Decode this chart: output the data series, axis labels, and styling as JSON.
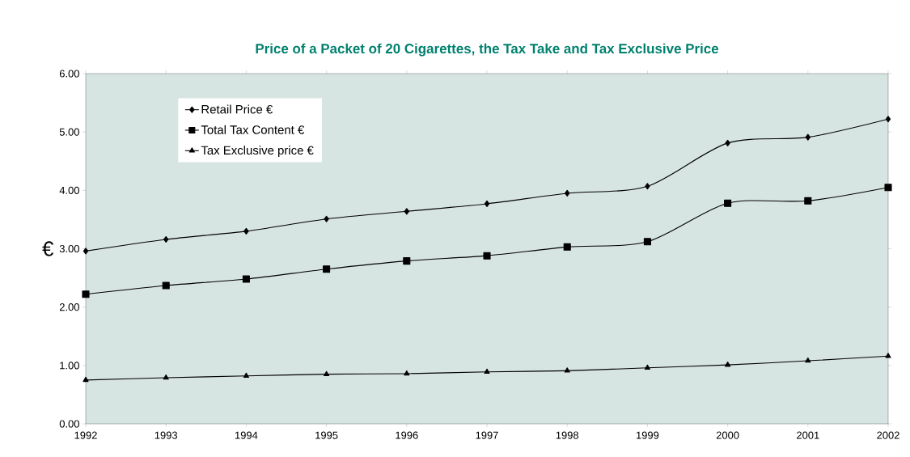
{
  "chart_data": {
    "type": "line",
    "title": "Price of a Packet of 20 Cigarettes, the Tax Take and Tax Exclusive Price",
    "ylabel": "€",
    "categories": [
      "1992",
      "1993",
      "1994",
      "1995",
      "1996",
      "1997",
      "1998",
      "1999",
      "2000",
      "2001",
      "2002"
    ],
    "series": [
      {
        "name": "Retail Price €",
        "color": "#000000",
        "marker": "diamond",
        "values": [
          2.96,
          3.16,
          3.3,
          3.51,
          3.64,
          3.77,
          3.95,
          4.07,
          4.81,
          4.91,
          5.22
        ]
      },
      {
        "name": "Total Tax Content €",
        "color": "#000000",
        "marker": "square",
        "values": [
          2.22,
          2.37,
          2.48,
          2.65,
          2.79,
          2.88,
          3.03,
          3.12,
          3.78,
          3.82,
          4.05
        ]
      },
      {
        "name": "Tax Exclusive price €",
        "color": "#000000",
        "marker": "triangle",
        "values": [
          0.75,
          0.79,
          0.82,
          0.85,
          0.86,
          0.89,
          0.91,
          0.96,
          1.01,
          1.08,
          1.16
        ]
      }
    ],
    "ylim": [
      0,
      6
    ],
    "yticks": [
      {
        "value": 0,
        "label": "0.00"
      },
      {
        "value": 1,
        "label": "1.00"
      },
      {
        "value": 2,
        "label": "2.00"
      },
      {
        "value": 3,
        "label": "3.00"
      },
      {
        "value": 4,
        "label": "4.00"
      },
      {
        "value": 5,
        "label": "5.00"
      },
      {
        "value": 6,
        "label": "6.00"
      }
    ],
    "legend": "top left",
    "grid": false,
    "line_style": "solid"
  }
}
